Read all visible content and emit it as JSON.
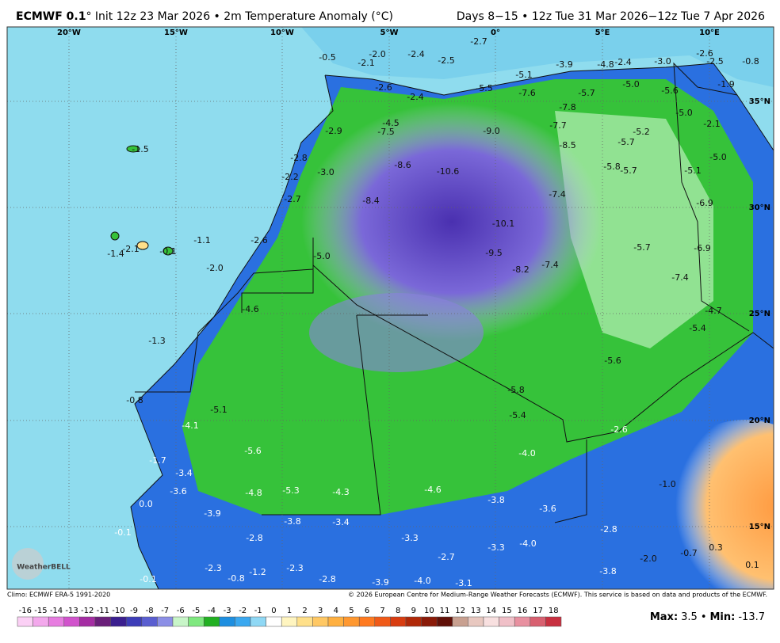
{
  "header": {
    "title_bold": "ECMWF 0.1",
    "title_rest": "° Init 12z 23 Mar 2026 • 2m Temperature Anomaly (°C)",
    "valid": "Days 8−15 • 12z Tue 31 Mar 2026−12z Tue 7 Apr 2026"
  },
  "map": {
    "lon_labels": [
      "20°W",
      "15°W",
      "10°W",
      "5°W",
      "0°",
      "5°E",
      "10°E"
    ],
    "lat_labels": [
      "35°N",
      "30°N",
      "25°N",
      "20°N",
      "15°N"
    ],
    "labels": [
      "-0.5",
      "-2.0",
      "-2.1",
      "-2.4",
      "-2.5",
      "-2.7",
      "-3.9",
      "-4.8",
      "-2.4",
      "-3.0",
      "-2.6",
      "-2.5",
      "-0.8",
      "-5.1",
      "-5.5",
      "-7.6",
      "-5.7",
      "-5.0",
      "-5.6",
      "-1.9",
      "-2.6",
      "-2.4",
      "-7.8",
      "-5.0",
      "-4.5",
      "-7.5",
      "-9.0",
      "-7.7",
      "-2.1",
      "-2.9",
      "-8.5",
      "-5.2",
      "-5.7",
      "-1.5",
      "-2.8",
      "-8.6",
      "-10.6",
      "-5.8",
      "-5.7",
      "-5.0",
      "-3.0",
      "-2.2",
      "-5.1",
      "-2.7",
      "-8.4",
      "-7.4",
      "-6.9",
      "-10.1",
      "-2.6",
      "-1.1",
      "-5.0",
      "-9.5",
      "-8.2",
      "-7.4",
      "-5.7",
      "-6.9",
      "-2.1",
      "-1.4",
      "-0.1",
      "-2.0",
      "-7.4",
      "-4.6",
      "-4.7",
      "-5.4",
      "-1.3",
      "-5.6",
      "-5.8",
      "-0.8",
      "-5.1",
      "-5.4",
      "-4.1",
      "-2.6",
      "-5.6",
      "-4.0",
      "-1.7",
      "-3.4",
      "-1.0",
      "-3.6",
      "-4.8",
      "-5.3",
      "-4.3",
      "-4.6",
      "-3.8",
      "0.0",
      "-3.6",
      "-3.9",
      "-3.8",
      "-3.4",
      "-2.8",
      "-3.3",
      "-2.8",
      "-0.1",
      "-3.3",
      "-4.0",
      "0.3",
      "-0.7",
      "-2.0",
      "-2.7",
      "-2.3",
      "-2.3",
      "-1.2",
      "-3.8",
      "0.1",
      "-0.8",
      "-2.8",
      "-0.1",
      "-3.9",
      "-4.0",
      "-3.1"
    ],
    "logo": "WeatherBELL"
  },
  "footer": {
    "climo": "Climo: ECMWF ERA-5 1991-2020",
    "copyright": "© 2026 European Centre for Medium-Range Weather Forecasts (ECMWF). This service is based on data and products of the ECMWF."
  },
  "colorbar": {
    "ticks": [
      -16,
      -15,
      -14,
      -13,
      -12,
      -11,
      -10,
      -9,
      -8,
      -7,
      -6,
      -5,
      -4,
      -3,
      -2,
      -1,
      0,
      1,
      2,
      3,
      4,
      5,
      6,
      7,
      8,
      9,
      10,
      11,
      12,
      13,
      14,
      15,
      16,
      17,
      18
    ],
    "colors": [
      "#fbd0f5",
      "#f3a8ec",
      "#e77de0",
      "#d153cc",
      "#a52da3",
      "#6a1f7a",
      "#3b1f8f",
      "#3d3db8",
      "#5a5ed0",
      "#8c8fe6",
      "#c8f5c8",
      "#7fe87f",
      "#22b022",
      "#1e8fe0",
      "#3aa8f0",
      "#8fd8f5",
      "#ffffff",
      "#fff5c0",
      "#ffe08a",
      "#ffc864",
      "#ffb040",
      "#ff9830",
      "#ff7a20",
      "#f05a18",
      "#d83c10",
      "#b02808",
      "#8a1a08",
      "#601008",
      "#c8a090",
      "#e8c8c0",
      "#f8e0e0",
      "#f0c0c8",
      "#e890a0",
      "#d86070",
      "#c83040"
    ]
  },
  "stats": {
    "max_label": "Max:",
    "max": "3.5",
    "separator": "•",
    "min_label": "Min:",
    "min": "-13.7"
  }
}
